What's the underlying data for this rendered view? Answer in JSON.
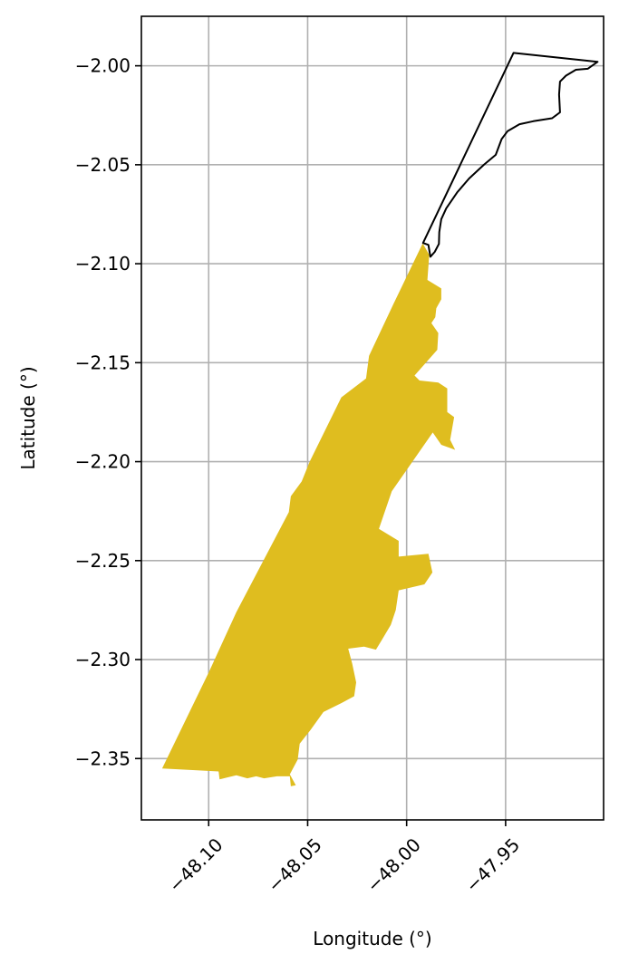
{
  "chart_data": {
    "type": "map",
    "xlabel": "Longitude (°)",
    "ylabel": "Latitude (°)",
    "xlim": [
      -48.134,
      -47.9005
    ],
    "ylim": [
      -2.381,
      -1.975
    ],
    "grid": true,
    "xticks": [
      {
        "value": -48.1,
        "label": "−48.10"
      },
      {
        "value": -48.05,
        "label": "−48.05"
      },
      {
        "value": -48.0,
        "label": "−48.00"
      },
      {
        "value": -47.95,
        "label": "−47.95"
      }
    ],
    "yticks": [
      {
        "value": -2.0,
        "label": "−2.00"
      },
      {
        "value": -2.05,
        "label": "−2.05"
      },
      {
        "value": -2.1,
        "label": "−2.10"
      },
      {
        "value": -2.15,
        "label": "−2.15"
      },
      {
        "value": -2.2,
        "label": "−2.20"
      },
      {
        "value": -2.25,
        "label": "−2.25"
      },
      {
        "value": -2.3,
        "label": "−2.30"
      },
      {
        "value": -2.35,
        "label": "−2.35"
      }
    ],
    "regions": [
      {
        "kind": "filled",
        "fill": "#dfbd1f",
        "stroke": "none",
        "coords": [
          [
            -47.9917,
            -2.09
          ],
          [
            -47.9886,
            -2.0955
          ],
          [
            -47.9895,
            -2.1082
          ],
          [
            -47.9825,
            -2.1125
          ],
          [
            -47.9825,
            -2.118
          ],
          [
            -47.985,
            -2.1225
          ],
          [
            -47.9855,
            -2.127
          ],
          [
            -47.9875,
            -2.13
          ],
          [
            -47.984,
            -2.135
          ],
          [
            -47.9845,
            -2.1435
          ],
          [
            -47.996,
            -2.1565
          ],
          [
            -47.9935,
            -2.159
          ],
          [
            -47.984,
            -2.16
          ],
          [
            -47.9795,
            -2.163
          ],
          [
            -47.9795,
            -2.175
          ],
          [
            -47.976,
            -2.1775
          ],
          [
            -47.978,
            -2.189
          ],
          [
            -47.9755,
            -2.194
          ],
          [
            -47.9825,
            -2.1915
          ],
          [
            -47.9868,
            -2.1853
          ],
          [
            -48.0075,
            -2.215
          ],
          [
            -48.014,
            -2.234
          ],
          [
            -48.004,
            -2.24
          ],
          [
            -48.004,
            -2.248
          ],
          [
            -47.989,
            -2.2465
          ],
          [
            -47.987,
            -2.256
          ],
          [
            -47.991,
            -2.262
          ],
          [
            -48.004,
            -2.265
          ],
          [
            -48.0055,
            -2.275
          ],
          [
            -48.008,
            -2.2825
          ],
          [
            -48.0125,
            -2.29
          ],
          [
            -48.0155,
            -2.295
          ],
          [
            -48.0215,
            -2.2935
          ],
          [
            -48.0295,
            -2.2945
          ],
          [
            -48.0275,
            -2.302
          ],
          [
            -48.0255,
            -2.3115
          ],
          [
            -48.0265,
            -2.3185
          ],
          [
            -48.033,
            -2.322
          ],
          [
            -48.042,
            -2.3265
          ],
          [
            -48.0485,
            -2.3355
          ],
          [
            -48.054,
            -2.3425
          ],
          [
            -48.055,
            -2.3505
          ],
          [
            -48.059,
            -2.358
          ],
          [
            -48.056,
            -2.3635
          ],
          [
            -48.0585,
            -2.364
          ],
          [
            -48.059,
            -2.359
          ],
          [
            -48.0655,
            -2.359
          ],
          [
            -48.072,
            -2.36
          ],
          [
            -48.076,
            -2.359
          ],
          [
            -48.0805,
            -2.36
          ],
          [
            -48.086,
            -2.3585
          ],
          [
            -48.0945,
            -2.3605
          ],
          [
            -48.095,
            -2.3565
          ],
          [
            -48.1235,
            -2.355
          ],
          [
            -48.1,
            -2.3065
          ],
          [
            -48.086,
            -2.276
          ],
          [
            -48.0595,
            -2.2255
          ],
          [
            -48.0585,
            -2.2175
          ],
          [
            -48.053,
            -2.21
          ],
          [
            -48.049,
            -2.2
          ],
          [
            -48.033,
            -2.1675
          ],
          [
            -48.0205,
            -2.158
          ],
          [
            -48.019,
            -2.1465
          ],
          [
            -48.0065,
            -2.12
          ],
          [
            -47.992,
            -2.09
          ]
        ]
      },
      {
        "kind": "outline",
        "fill": "none",
        "stroke": "#000000",
        "coords": [
          [
            -47.9917,
            -2.0895
          ],
          [
            -47.946,
            -1.9935
          ],
          [
            -47.9035,
            -1.998
          ],
          [
            -47.9085,
            -2.0015
          ],
          [
            -47.9145,
            -2.002
          ],
          [
            -47.9195,
            -2.005
          ],
          [
            -47.9225,
            -2.008
          ],
          [
            -47.923,
            -2.0145
          ],
          [
            -47.9225,
            -2.0235
          ],
          [
            -47.9265,
            -2.0265
          ],
          [
            -47.936,
            -2.028
          ],
          [
            -47.943,
            -2.0295
          ],
          [
            -47.949,
            -2.033
          ],
          [
            -47.952,
            -2.037
          ],
          [
            -47.955,
            -2.045
          ],
          [
            -47.961,
            -2.05
          ],
          [
            -47.9685,
            -2.057
          ],
          [
            -47.9745,
            -2.064
          ],
          [
            -47.98,
            -2.072
          ],
          [
            -47.9825,
            -2.0775
          ],
          [
            -47.9835,
            -2.084
          ],
          [
            -47.9837,
            -2.09
          ],
          [
            -47.9858,
            -2.094
          ],
          [
            -47.988,
            -2.0965
          ],
          [
            -47.989,
            -2.0905
          ],
          [
            -47.9917,
            -2.0895
          ]
        ]
      }
    ]
  }
}
